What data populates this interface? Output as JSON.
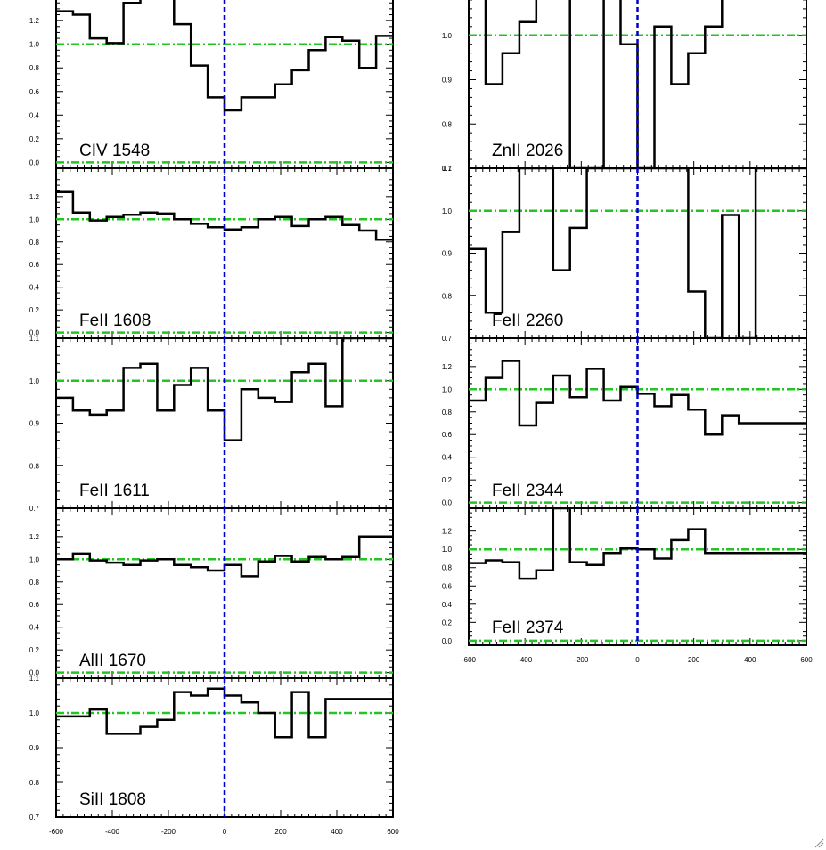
{
  "colors": {
    "spectrum": "#000000",
    "continuum": "#22c522",
    "zero_velocity": "#0000cc",
    "frame": "#000000"
  },
  "chart_data": [
    {
      "type": "line",
      "column": 1,
      "title": "CIV 1548",
      "xlim": [
        -600,
        600
      ],
      "ylim": [
        -0.05,
        1.45
      ],
      "yticks": [
        "0.0",
        "0.2",
        "0.4",
        "0.6",
        "0.8",
        "1.0",
        "1.2"
      ],
      "xticks": [],
      "continuum": [
        1.0,
        0.0
      ],
      "zero_velocity": 0,
      "x": [
        -600,
        -540,
        -480,
        -420,
        -360,
        -300,
        -240,
        -180,
        -120,
        -60,
        0,
        60,
        120,
        180,
        240,
        300,
        360,
        420,
        480,
        540,
        600
      ],
      "y": [
        1.28,
        1.25,
        1.05,
        1.01,
        1.35,
        1.45,
        1.45,
        1.17,
        0.82,
        0.55,
        0.44,
        0.55,
        0.55,
        0.66,
        0.78,
        0.95,
        1.06,
        1.03,
        0.8,
        1.07,
        1.07
      ]
    },
    {
      "type": "line",
      "column": 1,
      "title": "FeII 1608",
      "xlim": [
        -600,
        600
      ],
      "ylim": [
        -0.05,
        1.45
      ],
      "yticks": [
        "0.0",
        "0.2",
        "0.4",
        "0.6",
        "0.8",
        "1.0",
        "1.2"
      ],
      "xticks": [],
      "continuum": [
        1.0,
        0.0
      ],
      "zero_velocity": 0,
      "x": [
        -600,
        -540,
        -480,
        -420,
        -360,
        -300,
        -240,
        -180,
        -120,
        -60,
        0,
        60,
        120,
        180,
        240,
        300,
        360,
        420,
        480,
        540,
        600
      ],
      "y": [
        1.24,
        1.06,
        0.99,
        1.02,
        1.04,
        1.06,
        1.05,
        1.0,
        0.96,
        0.93,
        0.91,
        0.93,
        1.0,
        1.02,
        0.94,
        1.0,
        1.02,
        0.95,
        0.9,
        0.82,
        0.82
      ]
    },
    {
      "type": "line",
      "column": 1,
      "title": "FeII 1611",
      "xlim": [
        -600,
        600
      ],
      "ylim": [
        0.7,
        1.1
      ],
      "yticks": [
        "0.7",
        "0.8",
        "0.9",
        "1.0",
        "1.1"
      ],
      "xticks": [],
      "continuum": [
        1.0
      ],
      "zero_velocity": 0,
      "x": [
        -600,
        -540,
        -480,
        -420,
        -360,
        -300,
        -240,
        -180,
        -120,
        -60,
        0,
        60,
        120,
        180,
        240,
        300,
        360,
        420,
        480,
        540,
        600
      ],
      "y": [
        0.96,
        0.93,
        0.92,
        0.93,
        1.03,
        1.04,
        0.93,
        0.99,
        1.03,
        0.93,
        0.86,
        0.98,
        0.96,
        0.95,
        1.02,
        1.04,
        0.94,
        1.1,
        1.1,
        1.1,
        1.1
      ]
    },
    {
      "type": "line",
      "column": 1,
      "title": "AlII 1670",
      "xlim": [
        -600,
        600
      ],
      "ylim": [
        -0.05,
        1.45
      ],
      "yticks": [
        "0.0",
        "0.2",
        "0.4",
        "0.6",
        "0.8",
        "1.0",
        "1.2"
      ],
      "xticks": [],
      "continuum": [
        1.0,
        0.0
      ],
      "zero_velocity": 0,
      "x": [
        -600,
        -540,
        -480,
        -420,
        -360,
        -300,
        -240,
        -180,
        -120,
        -60,
        0,
        60,
        120,
        180,
        240,
        300,
        360,
        420,
        480,
        540,
        600
      ],
      "y": [
        1.0,
        1.05,
        0.99,
        0.97,
        0.95,
        0.99,
        1.0,
        0.95,
        0.93,
        0.9,
        0.95,
        0.85,
        0.98,
        1.03,
        0.98,
        1.02,
        1.0,
        1.02,
        1.2,
        1.2,
        1.2
      ]
    },
    {
      "type": "line",
      "column": 1,
      "title": "SiII 1808",
      "xlim": [
        -600,
        600
      ],
      "ylim": [
        0.7,
        1.1
      ],
      "yticks": [
        "0.7",
        "0.8",
        "0.9",
        "1.0",
        "1.1"
      ],
      "xticks": [
        "-600",
        "-400",
        "-200",
        "0",
        "200",
        "400",
        "600"
      ],
      "continuum": [
        1.0
      ],
      "zero_velocity": 0,
      "x": [
        -600,
        -540,
        -480,
        -420,
        -360,
        -300,
        -240,
        -180,
        -120,
        -60,
        0,
        60,
        120,
        180,
        240,
        300,
        360,
        420,
        480,
        540,
        600
      ],
      "y": [
        0.99,
        0.99,
        1.01,
        0.94,
        0.94,
        0.96,
        0.98,
        1.06,
        1.05,
        1.07,
        1.05,
        1.03,
        1.0,
        0.93,
        1.06,
        0.93,
        1.04,
        1.04,
        1.04,
        1.04,
        1.04
      ]
    },
    {
      "type": "line",
      "column": 2,
      "title": "ZnII 2026",
      "xlim": [
        -600,
        600
      ],
      "ylim": [
        0.7,
        1.1
      ],
      "yticks": [
        "0.7",
        "0.8",
        "0.9",
        "1.0",
        "1.1"
      ],
      "xticks": [],
      "continuum": [
        1.0
      ],
      "zero_velocity": 0,
      "x": [
        -600,
        -540,
        -480,
        -420,
        -360,
        -300,
        -240,
        -180,
        -120,
        -60,
        0,
        60,
        120,
        180,
        240,
        300,
        360,
        420,
        480,
        540,
        600
      ],
      "y": [
        1.1,
        0.89,
        0.96,
        1.03,
        1.1,
        1.1,
        0.7,
        0.7,
        1.1,
        0.98,
        0.7,
        1.02,
        0.89,
        0.96,
        1.02,
        1.1,
        1.1,
        1.1,
        1.1,
        1.1,
        1.1
      ]
    },
    {
      "type": "line",
      "column": 2,
      "title": "FeII 2260",
      "xlim": [
        -600,
        600
      ],
      "ylim": [
        0.7,
        1.1
      ],
      "yticks": [
        "0.7",
        "0.8",
        "0.9",
        "1.0",
        "1.1"
      ],
      "xticks": [],
      "continuum": [
        1.0
      ],
      "zero_velocity": 0,
      "x": [
        -600,
        -540,
        -480,
        -420,
        -360,
        -300,
        -240,
        -180,
        -120,
        -60,
        0,
        60,
        120,
        180,
        240,
        300,
        360,
        420,
        480,
        540,
        600
      ],
      "y": [
        0.91,
        0.76,
        0.95,
        1.1,
        1.1,
        0.86,
        0.96,
        1.1,
        1.1,
        1.1,
        1.1,
        1.1,
        1.1,
        0.81,
        0.7,
        0.99,
        0.7,
        1.1,
        1.1,
        1.1,
        1.1
      ]
    },
    {
      "type": "line",
      "column": 2,
      "title": "FeII 2344",
      "xlim": [
        -600,
        600
      ],
      "ylim": [
        -0.05,
        1.45
      ],
      "yticks": [
        "0.0",
        "0.2",
        "0.4",
        "0.6",
        "0.8",
        "1.0",
        "1.2"
      ],
      "xticks": [],
      "continuum": [
        1.0,
        0.0
      ],
      "zero_velocity": 0,
      "x": [
        -600,
        -540,
        -480,
        -420,
        -360,
        -300,
        -240,
        -180,
        -120,
        -60,
        0,
        60,
        120,
        180,
        240,
        300,
        360,
        420,
        480,
        540,
        600
      ],
      "y": [
        0.9,
        1.1,
        1.25,
        0.68,
        0.88,
        1.12,
        0.93,
        1.18,
        0.9,
        1.02,
        0.96,
        0.85,
        0.95,
        0.82,
        0.6,
        0.77,
        0.7,
        0.7,
        0.7,
        0.7,
        0.7
      ]
    },
    {
      "type": "line",
      "column": 2,
      "title": "FeII 2374",
      "xlim": [
        -600,
        600
      ],
      "ylim": [
        -0.05,
        1.45
      ],
      "yticks": [
        "0.0",
        "0.2",
        "0.4",
        "0.6",
        "0.8",
        "1.0",
        "1.2"
      ],
      "xticks": [
        "-600",
        "-400",
        "-200",
        "0",
        "200",
        "400",
        "600"
      ],
      "continuum": [
        1.0,
        0.0
      ],
      "zero_velocity": 0,
      "x": [
        -600,
        -540,
        -480,
        -420,
        -360,
        -300,
        -240,
        -180,
        -120,
        -60,
        0,
        60,
        120,
        180,
        240,
        300,
        360,
        420,
        480,
        540,
        600
      ],
      "y": [
        0.85,
        0.88,
        0.86,
        0.68,
        0.77,
        1.45,
        0.86,
        0.83,
        0.96,
        1.01,
        1.0,
        0.9,
        1.1,
        1.22,
        0.96,
        0.96,
        0.96,
        0.96,
        0.96,
        0.96,
        0.96
      ]
    }
  ]
}
